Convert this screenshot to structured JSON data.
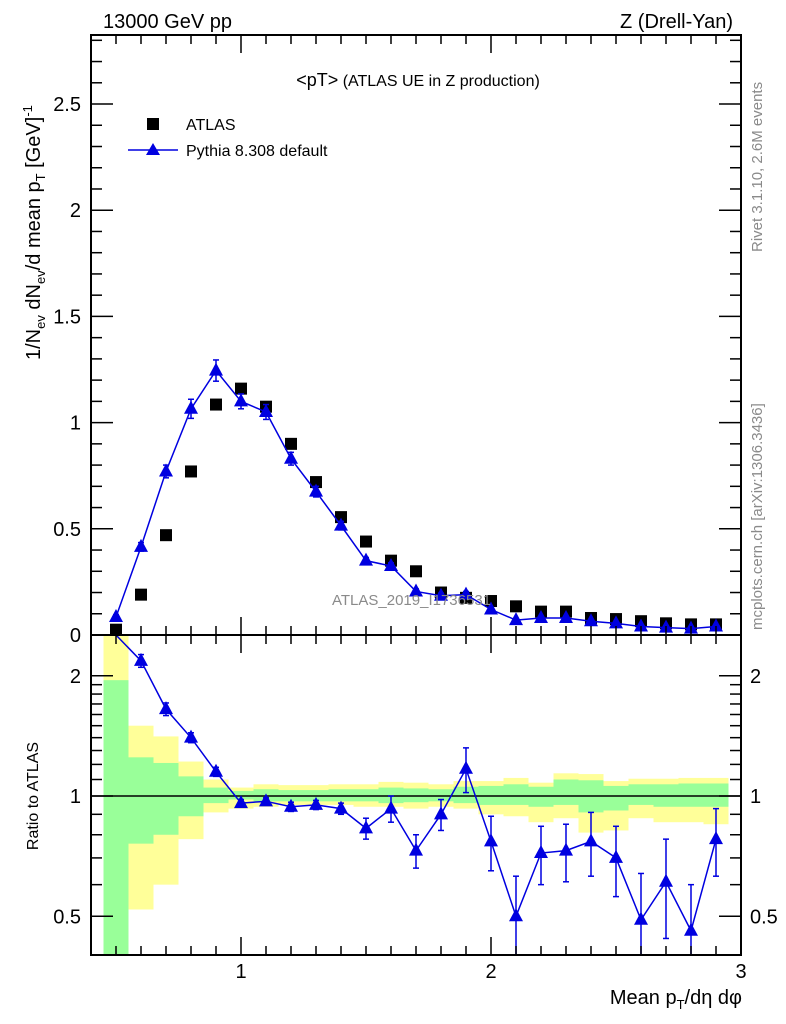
{
  "header": {
    "left": "13000 GeV pp",
    "right": "Z (Drell-Yan)"
  },
  "side_text": {
    "rivet": "Rivet 3.1.10,  2.6M events",
    "mcplots": "mcplots.cern.ch [arXiv:1306.3436]"
  },
  "chart_data": [
    {
      "type": "scatter",
      "title_main": "<pT>",
      "title_sub": "(ATLAS UE in Z production)",
      "ylabel": "1/N_ev dN_ev/d mean p_T [GeV]^-1",
      "ylabel_parts": {
        "a": "1/N",
        "b": "ev",
        "c": " dN",
        "d": "ev",
        "e": "/d mean p",
        "f": "T",
        "g": " [GeV]",
        "h": "-1"
      },
      "watermark": "ATLAS_2019_I1736531",
      "xlim": [
        0.4,
        3.0
      ],
      "ylim": [
        0,
        2.825
      ],
      "yticks": [
        0,
        0.5,
        1,
        1.5,
        2,
        2.5
      ],
      "ytick_labels": [
        "0",
        "0.5",
        "1",
        "1.5",
        "2",
        "2.5"
      ],
      "legend_placement": "top-left",
      "x": [
        0.5,
        0.6,
        0.7,
        0.8,
        0.9,
        1.0,
        1.1,
        1.2,
        1.3,
        1.4,
        1.5,
        1.6,
        1.7,
        1.8,
        1.9,
        2.0,
        2.1,
        2.2,
        2.3,
        2.4,
        2.5,
        2.6,
        2.7,
        2.8,
        2.9
      ],
      "series": [
        {
          "name": "ATLAS",
          "color": "#000000",
          "marker": "square",
          "values": [
            0.025,
            0.19,
            0.47,
            0.77,
            1.085,
            1.16,
            1.075,
            0.9,
            0.72,
            0.555,
            0.44,
            0.35,
            0.3,
            0.2,
            0.175,
            0.16,
            0.135,
            0.11,
            0.11,
            0.08,
            0.075,
            0.065,
            0.055,
            0.05,
            0.05
          ]
        },
        {
          "name": "Pythia 8.308 default",
          "color": "#0000e0",
          "marker": "triangle",
          "values": [
            0.085,
            0.415,
            0.77,
            1.065,
            1.245,
            1.1,
            1.05,
            0.83,
            0.675,
            0.515,
            0.35,
            0.325,
            0.205,
            0.185,
            0.19,
            0.12,
            0.07,
            0.08,
            0.08,
            0.065,
            0.055,
            0.04,
            0.035,
            0.03,
            0.04
          ],
          "errors": [
            0.01,
            0.02,
            0.03,
            0.045,
            0.05,
            0.035,
            0.035,
            0.03,
            0.025,
            0.02,
            0.015,
            0.015,
            0.012,
            0.012,
            0.015,
            0.01,
            0.008,
            0.008,
            0.008,
            0.008,
            0.008,
            0.008,
            0.008,
            0.008,
            0.008
          ]
        }
      ]
    },
    {
      "type": "line",
      "ylabel": "Ratio to ATLAS",
      "xlabel_parts": {
        "a": "Mean p",
        "b": "T",
        "c": "/dη dφ"
      },
      "xlim": [
        0.4,
        3.0
      ],
      "ylim": [
        0.4,
        2.53
      ],
      "yscale": "log",
      "yticks": [
        0.5,
        1,
        2
      ],
      "ytick_labels": [
        "0.5",
        "1",
        "2"
      ],
      "xticks": [
        1,
        2,
        3
      ],
      "xtick_labels": [
        "1",
        "2",
        "3"
      ],
      "band_colors": {
        "stat": "#99ff99",
        "total": "#ffff99"
      },
      "bands": {
        "total_hi": [
          3,
          1.5,
          1.41,
          1.22,
          1.1,
          1.05,
          1.07,
          1.065,
          1.065,
          1.07,
          1.07,
          1.085,
          1.08,
          1.07,
          1.09,
          1.09,
          1.11,
          1.08,
          1.14,
          1.135,
          1.09,
          1.105,
          1.105,
          1.11,
          1.11
        ],
        "stat_hi": [
          1.95,
          1.25,
          1.21,
          1.12,
          1.05,
          1.03,
          1.04,
          1.035,
          1.035,
          1.04,
          1.04,
          1.05,
          1.045,
          1.04,
          1.055,
          1.06,
          1.07,
          1.055,
          1.1,
          1.095,
          1.06,
          1.07,
          1.07,
          1.075,
          1.075
        ],
        "stat_lo": [
          0.3,
          0.76,
          0.8,
          0.89,
          0.96,
          0.98,
          0.97,
          0.97,
          0.97,
          0.97,
          0.97,
          0.96,
          0.965,
          0.97,
          0.96,
          0.95,
          0.95,
          0.94,
          0.95,
          0.91,
          0.92,
          0.95,
          0.94,
          0.94,
          0.94
        ],
        "total_lo": [
          0.3,
          0.52,
          0.6,
          0.78,
          0.91,
          0.93,
          0.94,
          0.95,
          0.95,
          0.95,
          0.94,
          0.94,
          0.93,
          0.94,
          0.93,
          0.9,
          0.89,
          0.86,
          0.88,
          0.81,
          0.82,
          0.88,
          0.86,
          0.86,
          0.85
        ]
      },
      "ratio_x": [
        0.6,
        0.7,
        0.8,
        0.9,
        1.0,
        1.1,
        1.2,
        1.3,
        1.4,
        1.5,
        1.6,
        1.7,
        1.8,
        1.9,
        2.0,
        2.1,
        2.2,
        2.3,
        2.4,
        2.5,
        2.6,
        2.7,
        2.8,
        2.9
      ],
      "ratio_values": [
        2.18,
        1.65,
        1.4,
        1.15,
        0.96,
        0.97,
        0.94,
        0.95,
        0.93,
        0.83,
        0.93,
        0.73,
        0.9,
        1.17,
        0.77,
        0.5,
        0.72,
        0.73,
        0.77,
        0.7,
        0.49,
        0.61,
        0.46,
        0.78
      ],
      "ratio_errors": [
        0.08,
        0.06,
        0.04,
        0.03,
        0.02,
        0.02,
        0.025,
        0.025,
        0.03,
        0.05,
        0.07,
        0.07,
        0.08,
        0.15,
        0.12,
        0.13,
        0.12,
        0.12,
        0.14,
        0.14,
        0.15,
        0.17,
        0.14,
        0.15
      ]
    }
  ]
}
